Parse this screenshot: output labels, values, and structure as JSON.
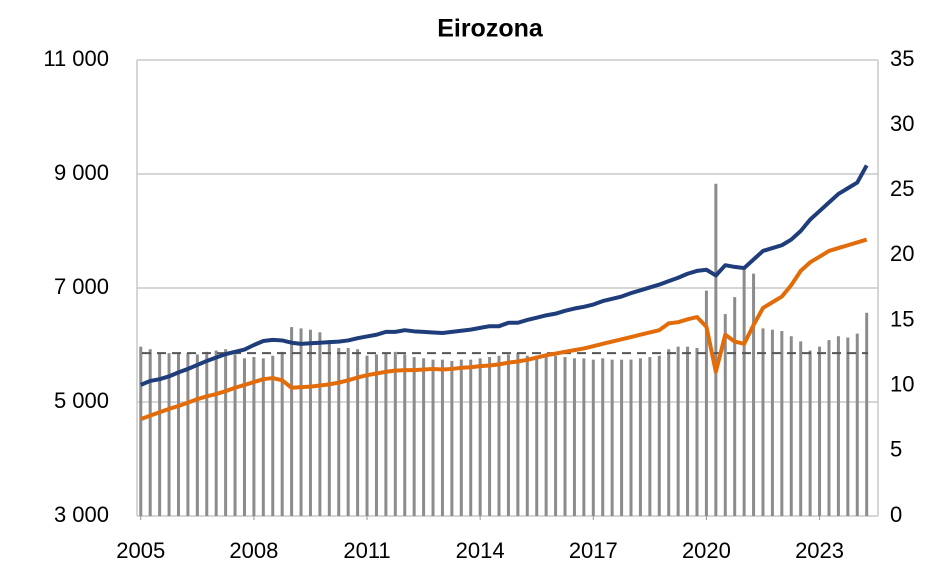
{
  "chart_data": {
    "type": "combo",
    "title": "Eirozona",
    "x": [
      2005,
      2005.25,
      2005.5,
      2005.75,
      2006,
      2006.25,
      2006.5,
      2006.75,
      2007,
      2007.25,
      2007.5,
      2007.75,
      2008,
      2008.25,
      2008.5,
      2008.75,
      2009,
      2009.25,
      2009.5,
      2009.75,
      2010,
      2010.25,
      2010.5,
      2010.75,
      2011,
      2011.25,
      2011.5,
      2011.75,
      2012,
      2012.25,
      2012.5,
      2012.75,
      2013,
      2013.25,
      2013.5,
      2013.75,
      2014,
      2014.25,
      2014.5,
      2014.75,
      2015,
      2015.25,
      2015.5,
      2015.75,
      2016,
      2016.25,
      2016.5,
      2016.75,
      2017,
      2017.25,
      2017.5,
      2017.75,
      2018,
      2018.25,
      2018.5,
      2018.75,
      2019,
      2019.25,
      2019.5,
      2019.75,
      2020,
      2020.25,
      2020.5,
      2020.75,
      2021,
      2021.25,
      2021.5,
      2021.75,
      2022,
      2022.25,
      2022.5,
      2022.75,
      2023,
      2023.25,
      2023.5,
      2023.75,
      2024,
      2024.25
    ],
    "series": [
      {
        "kind": "bar",
        "axis": "y2",
        "color": "#8c8c8c",
        "values": [
          13,
          12.8,
          12.5,
          12.5,
          12.5,
          12.5,
          12.4,
          12.6,
          12.7,
          12.8,
          12.4,
          12.1,
          12.2,
          12.1,
          12.3,
          12.6,
          14.5,
          14.4,
          14.3,
          14.1,
          13.5,
          12.9,
          12.9,
          12.8,
          12.3,
          12.4,
          12.5,
          12.6,
          12.4,
          12.2,
          12.1,
          12,
          12,
          11.9,
          12,
          12,
          12.1,
          12.2,
          12.3,
          12.4,
          12.5,
          12.3,
          12.3,
          12.2,
          12.3,
          12.2,
          12.1,
          12.1,
          12,
          12.1,
          12,
          12,
          12,
          12.1,
          12.2,
          12.3,
          12.8,
          13,
          13,
          12.9,
          17.3,
          25.5,
          15.5,
          16.8,
          19.2,
          18.6,
          14.4,
          14.3,
          14.2,
          13.8,
          13.4,
          12.7,
          13,
          13.5,
          13.8,
          13.7,
          14,
          15.6
        ]
      },
      {
        "kind": "line",
        "axis": "y",
        "color": "#1f3d7a",
        "values": [
          5300,
          5370,
          5400,
          5450,
          5520,
          5580,
          5650,
          5720,
          5780,
          5840,
          5880,
          5920,
          6000,
          6070,
          6090,
          6080,
          6040,
          6020,
          6030,
          6040,
          6050,
          6060,
          6080,
          6120,
          6150,
          6180,
          6230,
          6230,
          6260,
          6240,
          6230,
          6220,
          6210,
          6230,
          6250,
          6270,
          6300,
          6330,
          6330,
          6390,
          6390,
          6440,
          6480,
          6520,
          6550,
          6600,
          6640,
          6670,
          6710,
          6770,
          6810,
          6850,
          6910,
          6960,
          7010,
          7060,
          7120,
          7180,
          7250,
          7300,
          7320,
          7220,
          7400,
          7370,
          7350,
          7500,
          7650,
          7700,
          7750,
          7850,
          8000,
          8200,
          8350,
          8500,
          8650,
          8750,
          8850,
          9150
        ]
      },
      {
        "kind": "line",
        "axis": "y",
        "color": "#e36c0a",
        "values": [
          4700,
          4760,
          4820,
          4880,
          4930,
          4990,
          5050,
          5100,
          5140,
          5190,
          5250,
          5300,
          5350,
          5400,
          5420,
          5380,
          5250,
          5260,
          5270,
          5290,
          5310,
          5340,
          5380,
          5430,
          5470,
          5500,
          5530,
          5550,
          5560,
          5560,
          5570,
          5580,
          5570,
          5580,
          5600,
          5610,
          5630,
          5640,
          5660,
          5690,
          5710,
          5740,
          5780,
          5820,
          5850,
          5880,
          5910,
          5940,
          5980,
          6020,
          6060,
          6100,
          6140,
          6180,
          6220,
          6260,
          6380,
          6400,
          6450,
          6490,
          6320,
          5530,
          6180,
          6060,
          6020,
          6350,
          6650,
          6750,
          6850,
          7050,
          7300,
          7450,
          7550,
          7650,
          7700,
          7750,
          7800,
          7850
        ]
      }
    ],
    "hline": {
      "value": 12.5,
      "axis": "y2",
      "color": "#555555",
      "dashed": true
    },
    "xlim": [
      2004.9,
      2024.55
    ],
    "xticks": [
      2005,
      2008,
      2011,
      2014,
      2017,
      2020,
      2023
    ],
    "ylim": [
      3000,
      11000
    ],
    "yticks": [
      {
        "value": 3000,
        "label": "3 000"
      },
      {
        "value": 5000,
        "label": "5 000"
      },
      {
        "value": 7000,
        "label": "7 000"
      },
      {
        "value": 9000,
        "label": "9 000"
      },
      {
        "value": 11000,
        "label": "11 000"
      }
    ],
    "y2lim": [
      0,
      35
    ],
    "y2ticks": [
      0,
      5,
      10,
      15,
      20,
      25,
      30,
      35
    ],
    "grid": true
  }
}
